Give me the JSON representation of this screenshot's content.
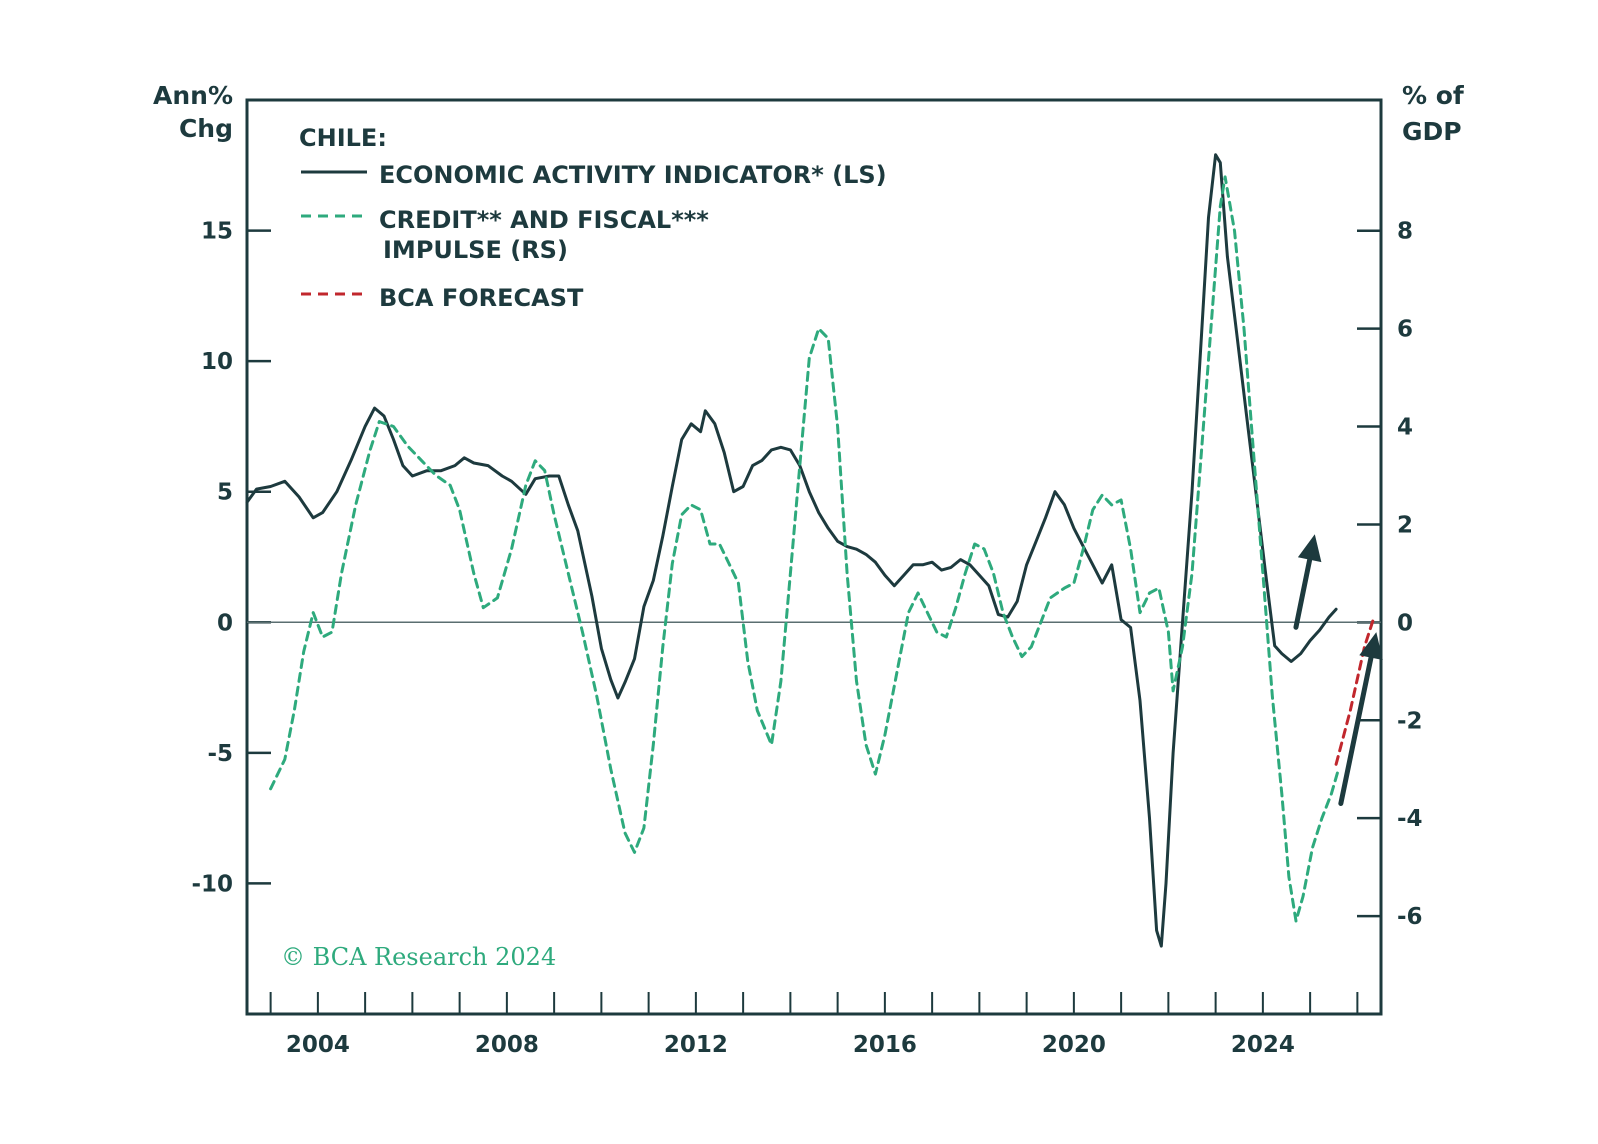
{
  "colors": {
    "frame": "#1d3a3e",
    "activity": "#1d3a3e",
    "impulse": "#2eaa7d",
    "forecast": "#c1272d",
    "zero_line": "#5a6e70"
  },
  "chart_data": {
    "type": "line",
    "left_axis_title": [
      "Ann%",
      "Chg"
    ],
    "right_axis_title": [
      "% of",
      "GDP"
    ],
    "legend": {
      "title": "CHILE:",
      "entries": [
        {
          "label_lines": [
            "ECONOMIC ACTIVITY INDICATOR* (LS)"
          ],
          "style": "solid",
          "color": "#1d3a3e"
        },
        {
          "label_lines": [
            "CREDIT** AND FISCAL***",
            "IMPULSE (RS)"
          ],
          "style": "dashed",
          "color": "#2eaa7d"
        },
        {
          "label_lines": [
            "BCA FORECAST"
          ],
          "style": "dashed",
          "color": "#c1272d"
        }
      ],
      "position": "top-left"
    },
    "copyright": "© BCA Research 2024",
    "x_range": [
      2002.5,
      2026.5
    ],
    "x_ticks": [
      2004,
      2008,
      2012,
      2016,
      2020,
      2024
    ],
    "y_left_range": [
      -15,
      20
    ],
    "y_left_ticks": [
      -10,
      -5,
      0,
      5,
      10,
      15
    ],
    "y_right_range": [
      -8,
      10.67
    ],
    "y_right_ticks": [
      -6,
      -4,
      -2,
      0,
      2,
      4,
      6,
      8
    ],
    "series": [
      {
        "name": "ECONOMIC ACTIVITY INDICATOR* (LS)",
        "axis": "left",
        "style": "solid",
        "points": [
          [
            2002.5,
            4.6
          ],
          [
            2002.7,
            5.1
          ],
          [
            2003.0,
            5.2
          ],
          [
            2003.3,
            5.4
          ],
          [
            2003.6,
            4.8
          ],
          [
            2003.9,
            4.0
          ],
          [
            2004.1,
            4.2
          ],
          [
            2004.4,
            5.0
          ],
          [
            2004.7,
            6.2
          ],
          [
            2005.0,
            7.5
          ],
          [
            2005.2,
            8.2
          ],
          [
            2005.4,
            7.9
          ],
          [
            2005.6,
            7.0
          ],
          [
            2005.8,
            6.0
          ],
          [
            2006.0,
            5.6
          ],
          [
            2006.3,
            5.8
          ],
          [
            2006.6,
            5.8
          ],
          [
            2006.9,
            6.0
          ],
          [
            2007.1,
            6.3
          ],
          [
            2007.3,
            6.1
          ],
          [
            2007.6,
            6.0
          ],
          [
            2007.9,
            5.6
          ],
          [
            2008.1,
            5.4
          ],
          [
            2008.4,
            4.9
          ],
          [
            2008.6,
            5.5
          ],
          [
            2008.9,
            5.6
          ],
          [
            2009.1,
            5.6
          ],
          [
            2009.3,
            4.5
          ],
          [
            2009.5,
            3.5
          ],
          [
            2009.8,
            1.0
          ],
          [
            2010.0,
            -1.0
          ],
          [
            2010.2,
            -2.2
          ],
          [
            2010.35,
            -2.9
          ],
          [
            2010.5,
            -2.3
          ],
          [
            2010.7,
            -1.4
          ],
          [
            2010.9,
            0.6
          ],
          [
            2011.1,
            1.6
          ],
          [
            2011.3,
            3.3
          ],
          [
            2011.5,
            5.2
          ],
          [
            2011.7,
            7.0
          ],
          [
            2011.9,
            7.6
          ],
          [
            2012.1,
            7.3
          ],
          [
            2012.2,
            8.1
          ],
          [
            2012.4,
            7.6
          ],
          [
            2012.6,
            6.5
          ],
          [
            2012.8,
            5.0
          ],
          [
            2013.0,
            5.2
          ],
          [
            2013.2,
            6.0
          ],
          [
            2013.4,
            6.2
          ],
          [
            2013.6,
            6.6
          ],
          [
            2013.8,
            6.7
          ],
          [
            2014.0,
            6.6
          ],
          [
            2014.2,
            6.0
          ],
          [
            2014.4,
            5.0
          ],
          [
            2014.6,
            4.2
          ],
          [
            2014.8,
            3.6
          ],
          [
            2015.0,
            3.1
          ],
          [
            2015.2,
            2.9
          ],
          [
            2015.4,
            2.8
          ],
          [
            2015.6,
            2.6
          ],
          [
            2015.8,
            2.3
          ],
          [
            2016.0,
            1.8
          ],
          [
            2016.2,
            1.4
          ],
          [
            2016.4,
            1.8
          ],
          [
            2016.6,
            2.2
          ],
          [
            2016.8,
            2.2
          ],
          [
            2017.0,
            2.3
          ],
          [
            2017.2,
            2.0
          ],
          [
            2017.4,
            2.1
          ],
          [
            2017.6,
            2.4
          ],
          [
            2017.8,
            2.2
          ],
          [
            2018.0,
            1.8
          ],
          [
            2018.2,
            1.4
          ],
          [
            2018.4,
            0.3
          ],
          [
            2018.6,
            0.2
          ],
          [
            2018.8,
            0.8
          ],
          [
            2019.0,
            2.2
          ],
          [
            2019.2,
            3.1
          ],
          [
            2019.4,
            4.0
          ],
          [
            2019.6,
            5.0
          ],
          [
            2019.8,
            4.5
          ],
          [
            2020.0,
            3.6
          ],
          [
            2020.2,
            2.9
          ],
          [
            2020.4,
            2.2
          ],
          [
            2020.6,
            1.5
          ],
          [
            2020.8,
            2.2
          ],
          [
            2021.0,
            0.1
          ],
          [
            2021.2,
            -0.2
          ],
          [
            2021.4,
            -3.0
          ],
          [
            2021.6,
            -7.5
          ],
          [
            2021.75,
            -11.8
          ],
          [
            2021.85,
            -12.4
          ],
          [
            2021.95,
            -10.0
          ],
          [
            2022.1,
            -5.0
          ],
          [
            2022.3,
            0.0
          ],
          [
            2022.5,
            5.0
          ],
          [
            2022.7,
            11.0
          ],
          [
            2022.85,
            15.5
          ],
          [
            2023.0,
            17.9
          ],
          [
            2023.1,
            17.6
          ],
          [
            2023.25,
            14.0
          ],
          [
            2023.45,
            11.0
          ],
          [
            2023.65,
            8.0
          ],
          [
            2023.85,
            5.0
          ],
          [
            2024.05,
            2.0
          ],
          [
            2024.25,
            -0.9
          ],
          [
            2024.4,
            -1.2
          ],
          [
            2024.6,
            -1.5
          ],
          [
            2024.8,
            -1.2
          ],
          [
            2025.0,
            -0.7
          ],
          [
            2025.2,
            -0.3
          ],
          [
            2025.4,
            0.2
          ],
          [
            2025.55,
            0.5
          ]
        ]
      },
      {
        "name": "CREDIT** AND FISCAL*** IMPULSE (RS)",
        "axis": "right",
        "style": "dashed",
        "points": [
          [
            2003.0,
            -3.4
          ],
          [
            2003.3,
            -2.8
          ],
          [
            2003.5,
            -1.8
          ],
          [
            2003.7,
            -0.6
          ],
          [
            2003.9,
            0.2
          ],
          [
            2004.1,
            -0.3
          ],
          [
            2004.3,
            -0.2
          ],
          [
            2004.5,
            1.0
          ],
          [
            2004.8,
            2.4
          ],
          [
            2005.1,
            3.5
          ],
          [
            2005.3,
            4.1
          ],
          [
            2005.6,
            4.0
          ],
          [
            2005.9,
            3.6
          ],
          [
            2006.2,
            3.3
          ],
          [
            2006.5,
            3.0
          ],
          [
            2006.8,
            2.8
          ],
          [
            2007.0,
            2.3
          ],
          [
            2007.3,
            1.0
          ],
          [
            2007.5,
            0.3
          ],
          [
            2007.8,
            0.5
          ],
          [
            2008.1,
            1.5
          ],
          [
            2008.4,
            2.8
          ],
          [
            2008.6,
            3.3
          ],
          [
            2008.8,
            3.1
          ],
          [
            2009.0,
            2.2
          ],
          [
            2009.3,
            1.0
          ],
          [
            2009.6,
            -0.2
          ],
          [
            2009.9,
            -1.5
          ],
          [
            2010.2,
            -3.0
          ],
          [
            2010.5,
            -4.3
          ],
          [
            2010.7,
            -4.7
          ],
          [
            2010.9,
            -4.2
          ],
          [
            2011.1,
            -2.5
          ],
          [
            2011.3,
            -0.5
          ],
          [
            2011.5,
            1.2
          ],
          [
            2011.7,
            2.2
          ],
          [
            2011.9,
            2.4
          ],
          [
            2012.1,
            2.3
          ],
          [
            2012.3,
            1.6
          ],
          [
            2012.5,
            1.6
          ],
          [
            2012.7,
            1.2
          ],
          [
            2012.9,
            0.8
          ],
          [
            2013.1,
            -0.8
          ],
          [
            2013.3,
            -1.8
          ],
          [
            2013.6,
            -2.5
          ],
          [
            2013.8,
            -1.2
          ],
          [
            2014.0,
            1.0
          ],
          [
            2014.2,
            3.2
          ],
          [
            2014.4,
            5.4
          ],
          [
            2014.6,
            6.0
          ],
          [
            2014.8,
            5.8
          ],
          [
            2015.0,
            4.0
          ],
          [
            2015.2,
            1.0
          ],
          [
            2015.4,
            -1.2
          ],
          [
            2015.6,
            -2.5
          ],
          [
            2015.8,
            -3.1
          ],
          [
            2016.0,
            -2.3
          ],
          [
            2016.3,
            -0.8
          ],
          [
            2016.5,
            0.2
          ],
          [
            2016.7,
            0.6
          ],
          [
            2016.9,
            0.2
          ],
          [
            2017.1,
            -0.2
          ],
          [
            2017.3,
            -0.3
          ],
          [
            2017.5,
            0.3
          ],
          [
            2017.7,
            1.0
          ],
          [
            2017.9,
            1.6
          ],
          [
            2018.1,
            1.5
          ],
          [
            2018.3,
            1.0
          ],
          [
            2018.5,
            0.2
          ],
          [
            2018.7,
            -0.3
          ],
          [
            2018.9,
            -0.7
          ],
          [
            2019.1,
            -0.5
          ],
          [
            2019.3,
            0.0
          ],
          [
            2019.5,
            0.5
          ],
          [
            2019.8,
            0.7
          ],
          [
            2020.0,
            0.8
          ],
          [
            2020.2,
            1.5
          ],
          [
            2020.4,
            2.3
          ],
          [
            2020.6,
            2.6
          ],
          [
            2020.8,
            2.4
          ],
          [
            2021.0,
            2.5
          ],
          [
            2021.2,
            1.5
          ],
          [
            2021.4,
            0.2
          ],
          [
            2021.6,
            0.6
          ],
          [
            2021.8,
            0.7
          ],
          [
            2022.0,
            -0.2
          ],
          [
            2022.1,
            -1.4
          ],
          [
            2022.3,
            -0.5
          ],
          [
            2022.5,
            1.0
          ],
          [
            2022.7,
            3.5
          ],
          [
            2022.9,
            6.0
          ],
          [
            2023.1,
            8.5
          ],
          [
            2023.2,
            9.1
          ],
          [
            2023.4,
            8.0
          ],
          [
            2023.6,
            6.0
          ],
          [
            2023.8,
            3.5
          ],
          [
            2024.0,
            1.0
          ],
          [
            2024.2,
            -1.5
          ],
          [
            2024.4,
            -3.5
          ],
          [
            2024.55,
            -5.2
          ],
          [
            2024.7,
            -6.1
          ],
          [
            2024.85,
            -5.6
          ],
          [
            2025.05,
            -4.6
          ],
          [
            2025.25,
            -4.0
          ],
          [
            2025.45,
            -3.5
          ],
          [
            2025.6,
            -3.0
          ]
        ]
      },
      {
        "name": "BCA FORECAST",
        "axis": "right",
        "style": "dashed",
        "points": [
          [
            2025.55,
            -2.9
          ],
          [
            2025.85,
            -1.8
          ],
          [
            2026.15,
            -0.5
          ],
          [
            2026.35,
            0.1
          ]
        ]
      }
    ],
    "arrows": [
      {
        "from": [
          2024.7,
          -0.1
        ],
        "to": [
          2025.1,
          1.8
        ],
        "axis": "right"
      },
      {
        "from": [
          2025.65,
          -3.7
        ],
        "to": [
          2026.4,
          -0.2
        ],
        "axis": "right"
      }
    ]
  }
}
